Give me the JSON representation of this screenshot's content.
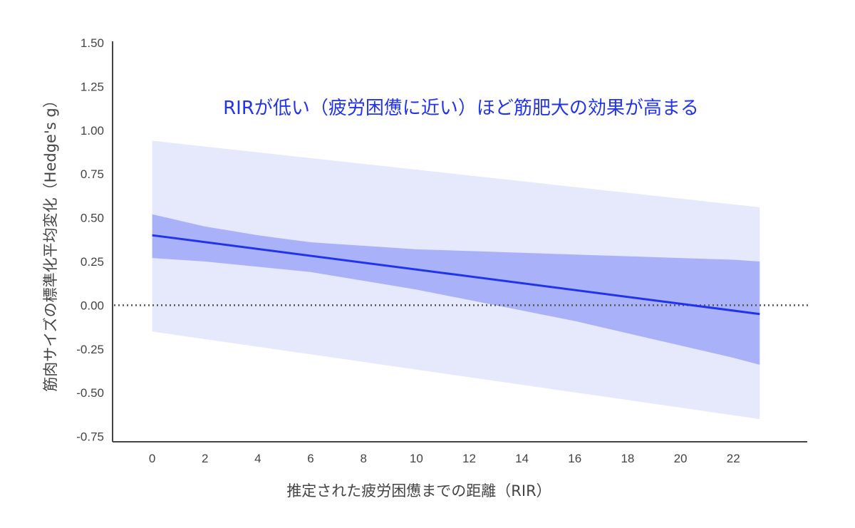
{
  "chart_data": {
    "type": "line",
    "xlabel": "推定された疲労困憊までの距離（RIR）",
    "ylabel": "筋肉サイズの標準化平均変化（Hedge's g）",
    "annotation": "RIRが低い（疲労困憊に近い）ほど筋肥大の効果が高まる",
    "xlim": [
      -1.5,
      24.8
    ],
    "ylim": [
      -0.78,
      1.5
    ],
    "x_ticks": [
      0,
      2,
      4,
      6,
      8,
      10,
      12,
      14,
      16,
      18,
      20,
      22
    ],
    "x_tick_labels": [
      "0",
      "2",
      "4",
      "6",
      "8",
      "10",
      "12",
      "14",
      "16",
      "18",
      "20",
      "22"
    ],
    "y_ticks": [
      1.5,
      1.25,
      1.0,
      0.75,
      0.5,
      0.25,
      0.0,
      -0.25,
      -0.5,
      -0.75
    ],
    "y_tick_labels": [
      "1.50",
      "1.25",
      "1.00",
      "0.75",
      "0.50",
      "0.25",
      "0.00",
      "-0.25",
      "-0.50",
      "-0.75"
    ],
    "reference_line": {
      "y": 0,
      "style": "dotted"
    },
    "grid": false,
    "series": [
      {
        "role": "estimate",
        "x": [
          0,
          23
        ],
        "y": [
          0.4,
          -0.05
        ]
      },
      {
        "role": "confidence_interval",
        "x": [
          0,
          2,
          4,
          6,
          8,
          10,
          12,
          14,
          16,
          18,
          20,
          22,
          23
        ],
        "lower": [
          0.27,
          0.25,
          0.22,
          0.19,
          0.14,
          0.09,
          0.03,
          -0.03,
          -0.09,
          -0.16,
          -0.23,
          -0.3,
          -0.34
        ],
        "upper": [
          0.52,
          0.45,
          0.4,
          0.36,
          0.34,
          0.32,
          0.31,
          0.3,
          0.29,
          0.28,
          0.27,
          0.26,
          0.25
        ]
      },
      {
        "role": "prediction_interval",
        "x": [
          0,
          23
        ],
        "lower": [
          -0.15,
          -0.65
        ],
        "upper": [
          0.94,
          0.56
        ]
      }
    ],
    "colors": {
      "estimate_line": "#2233ee",
      "confidence_band": "#a9b2f8",
      "prediction_band": "#e6e8fb",
      "axis": "#444444",
      "reference_line": "#555555",
      "annotation": "#2233ee"
    }
  }
}
